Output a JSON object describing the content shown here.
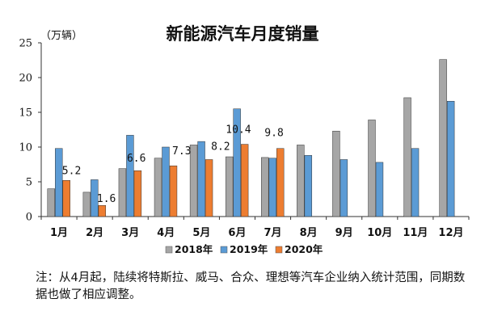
{
  "chart_data": {
    "type": "bar",
    "title": "新能源汽车月度销量",
    "unit_label": "（万辆）",
    "categories": [
      "1月",
      "2月",
      "3月",
      "4月",
      "5月",
      "6月",
      "7月",
      "8月",
      "9月",
      "10月",
      "11月",
      "12月"
    ],
    "ylim": [
      0,
      25
    ],
    "yticks": [
      0,
      5,
      10,
      15,
      20,
      25
    ],
    "series": [
      {
        "name": "2018年",
        "color": "#a6a6a6",
        "values": [
          4.0,
          3.5,
          6.9,
          8.4,
          10.3,
          8.6,
          8.5,
          10.3,
          12.3,
          13.9,
          17.1,
          22.6
        ]
      },
      {
        "name": "2019年",
        "color": "#5b9bd5",
        "values": [
          9.8,
          5.3,
          11.7,
          10.0,
          10.8,
          15.5,
          8.4,
          8.8,
          8.2,
          7.8,
          9.8,
          16.6
        ]
      },
      {
        "name": "2020年",
        "color": "#ed7d31",
        "values": [
          5.2,
          1.6,
          6.6,
          7.3,
          8.2,
          10.4,
          9.8,
          null,
          null,
          null,
          null,
          null
        ]
      }
    ],
    "data_labels_series": "2020年",
    "data_labels": [
      "5.2",
      "1.6",
      "6.6",
      "7.3",
      "8.2",
      "10.4",
      "9.8"
    ],
    "legend_position": "bottom",
    "grid": false
  },
  "note": "注：从4月起，陆续将特斯拉、威马、合众、理想等汽车企业纳入统计范围，同期数据也做了相应调整。"
}
